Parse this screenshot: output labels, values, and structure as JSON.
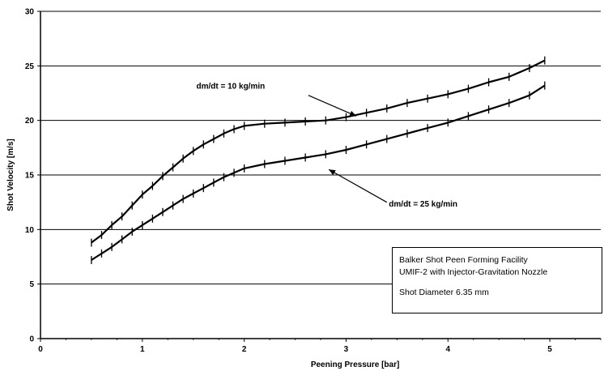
{
  "chart_data": {
    "type": "line",
    "xlabel": "Peening Pressure [bar]",
    "ylabel": "Shot Velocity [m/s]",
    "xlim": [
      0,
      5.5
    ],
    "ylim": [
      0,
      30
    ],
    "x_ticks": [
      "0",
      "1",
      "2",
      "3",
      "4",
      "5"
    ],
    "y_ticks": [
      "0",
      "5",
      "10",
      "15",
      "20",
      "25",
      "30"
    ],
    "grid": "horizontal",
    "series": [
      {
        "name": "dm/dt = 10 kg/min",
        "x": [
          0.5,
          0.6,
          0.7,
          0.8,
          0.9,
          1.0,
          1.1,
          1.2,
          1.3,
          1.4,
          1.5,
          1.6,
          1.7,
          1.8,
          1.9,
          2.0,
          2.2,
          2.4,
          2.6,
          2.8,
          3.0,
          3.2,
          3.4,
          3.6,
          3.8,
          4.0,
          4.2,
          4.4,
          4.6,
          4.8,
          4.95
        ],
        "y": [
          8.8,
          9.5,
          10.4,
          11.2,
          12.2,
          13.2,
          14.0,
          14.9,
          15.7,
          16.5,
          17.2,
          17.8,
          18.3,
          18.8,
          19.2,
          19.5,
          19.7,
          19.8,
          19.9,
          20.0,
          20.3,
          20.7,
          21.1,
          21.6,
          22.0,
          22.4,
          22.9,
          23.5,
          24.0,
          24.8,
          25.5
        ]
      },
      {
        "name": "dm/dt = 25 kg/min",
        "x": [
          0.5,
          0.6,
          0.7,
          0.8,
          0.9,
          1.0,
          1.1,
          1.2,
          1.3,
          1.4,
          1.5,
          1.6,
          1.7,
          1.8,
          1.9,
          2.0,
          2.2,
          2.4,
          2.6,
          2.8,
          3.0,
          3.2,
          3.4,
          3.6,
          3.8,
          4.0,
          4.2,
          4.4,
          4.6,
          4.8,
          4.95
        ],
        "y": [
          7.2,
          7.8,
          8.4,
          9.1,
          9.8,
          10.4,
          11.0,
          11.6,
          12.2,
          12.8,
          13.3,
          13.8,
          14.3,
          14.8,
          15.2,
          15.6,
          16.0,
          16.3,
          16.6,
          16.9,
          17.3,
          17.8,
          18.3,
          18.8,
          19.3,
          19.8,
          20.4,
          21.0,
          21.6,
          22.3,
          23.2
        ]
      }
    ],
    "annotations": [
      {
        "text": "dm/dt = 10 kg/min"
      },
      {
        "text": "dm/dt = 25 kg/min"
      }
    ],
    "info_box": {
      "line1": "Balker Shot Peen Forming Facility",
      "line2": "UMIF-2 with Injector-Gravitation Nozzle",
      "line3": "Shot Diameter 6.35 mm"
    }
  }
}
